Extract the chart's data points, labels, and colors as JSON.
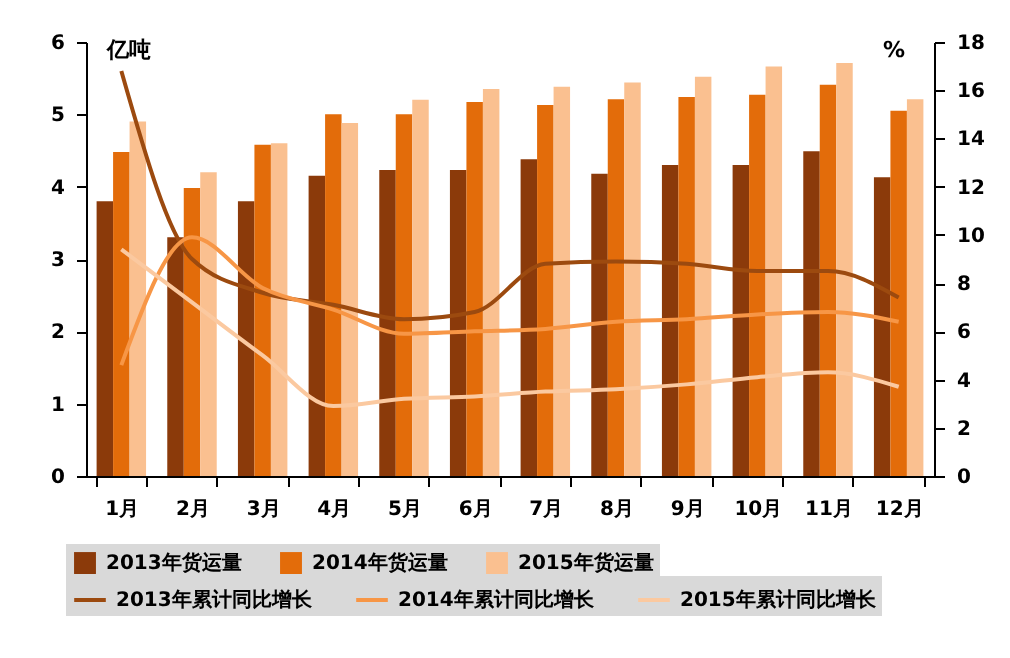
{
  "chart_data": {
    "type": "bar",
    "categories": [
      "1月",
      "2月",
      "3月",
      "4月",
      "5月",
      "6月",
      "7月",
      "8月",
      "9月",
      "10月",
      "11月",
      "12月"
    ],
    "ylabel": "亿吨",
    "y2label": "%",
    "ylim": [
      0,
      6
    ],
    "yticks": [
      0,
      1,
      2,
      3,
      4,
      5,
      6
    ],
    "y2lim": [
      0,
      18
    ],
    "y2ticks": [
      0,
      2,
      4,
      6,
      8,
      10,
      12,
      14,
      16,
      18
    ],
    "grid": false,
    "legend": "bottom",
    "series": [
      {
        "name": "2013年货运量",
        "type": "bar",
        "color": "#8b3a0a",
        "values": [
          3.8,
          3.3,
          3.8,
          4.15,
          4.23,
          4.23,
          4.38,
          4.18,
          4.3,
          4.3,
          4.49,
          4.13
        ]
      },
      {
        "name": "2014年货运量",
        "type": "bar",
        "color": "#e36c0a",
        "values": [
          4.48,
          3.98,
          4.58,
          5.0,
          5.0,
          5.17,
          5.13,
          5.21,
          5.24,
          5.27,
          5.41,
          5.05
        ]
      },
      {
        "name": "2015年货运量",
        "type": "bar",
        "color": "#fac090",
        "values": [
          4.9,
          4.2,
          4.6,
          4.88,
          5.2,
          5.35,
          5.38,
          5.44,
          5.52,
          5.66,
          5.71,
          5.21
        ]
      },
      {
        "name": "2013年累计同比增长",
        "type": "line",
        "axis": "y2",
        "color": "#9c4a0f",
        "values": [
          16.8,
          9.0,
          7.6,
          7.1,
          6.5,
          6.8,
          8.8,
          8.9,
          8.8,
          8.5,
          8.5,
          7.4
        ]
      },
      {
        "name": "2014年累计同比增长",
        "type": "line",
        "axis": "y2",
        "color": "#f79646",
        "values": [
          4.6,
          9.9,
          7.8,
          6.9,
          5.9,
          6.0,
          6.1,
          6.4,
          6.5,
          6.7,
          6.8,
          6.4
        ]
      },
      {
        "name": "2015年累计同比增长",
        "type": "line",
        "axis": "y2",
        "color": "#fbc9a0",
        "values": [
          9.4,
          7.2,
          5.0,
          2.9,
          3.2,
          3.3,
          3.5,
          3.6,
          3.8,
          4.1,
          4.3,
          3.7
        ]
      }
    ]
  }
}
